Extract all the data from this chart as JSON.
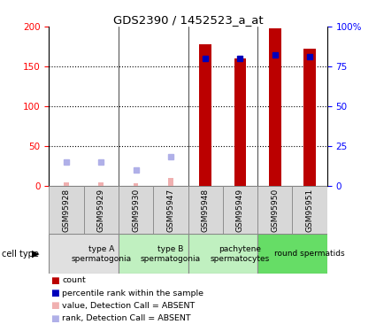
{
  "title": "GDS2390 / 1452523_a_at",
  "samples": [
    "GSM95928",
    "GSM95929",
    "GSM95930",
    "GSM95947",
    "GSM95948",
    "GSM95949",
    "GSM95950",
    "GSM95951"
  ],
  "count_values": [
    5,
    5,
    3,
    10,
    178,
    160,
    198,
    172
  ],
  "rank_values": [
    30,
    30,
    20,
    37,
    160,
    160,
    165,
    162
  ],
  "is_absent": [
    true,
    true,
    true,
    true,
    false,
    false,
    false,
    false
  ],
  "bar_color_present": "#bb0000",
  "bar_color_absent": "#f0b0b0",
  "rank_color_present": "#0000bb",
  "rank_color_absent": "#b0b0e8",
  "ylim_left": [
    0,
    200
  ],
  "yticks_left": [
    0,
    50,
    100,
    150,
    200
  ],
  "yticks_right": [
    0,
    50,
    100,
    150,
    200
  ],
  "yticklabels_right": [
    "0",
    "25",
    "50",
    "75",
    "100%"
  ],
  "cell_types": [
    {
      "label": "type A\nspermatogonia",
      "start": 0,
      "end": 2,
      "color": "#e0e0e0"
    },
    {
      "label": "type B\nspermatogonia",
      "start": 2,
      "end": 4,
      "color": "#c0f0c0"
    },
    {
      "label": "pachytene\nspermatocytes",
      "start": 4,
      "end": 6,
      "color": "#c0f0c0"
    },
    {
      "label": "round spermatids",
      "start": 6,
      "end": 8,
      "color": "#66dd66"
    }
  ],
  "legend_colors": [
    "#bb0000",
    "#0000bb",
    "#f0b0b0",
    "#b0b0e8"
  ],
  "legend_labels": [
    "count",
    "percentile rank within the sample",
    "value, Detection Call = ABSENT",
    "rank, Detection Call = ABSENT"
  ]
}
